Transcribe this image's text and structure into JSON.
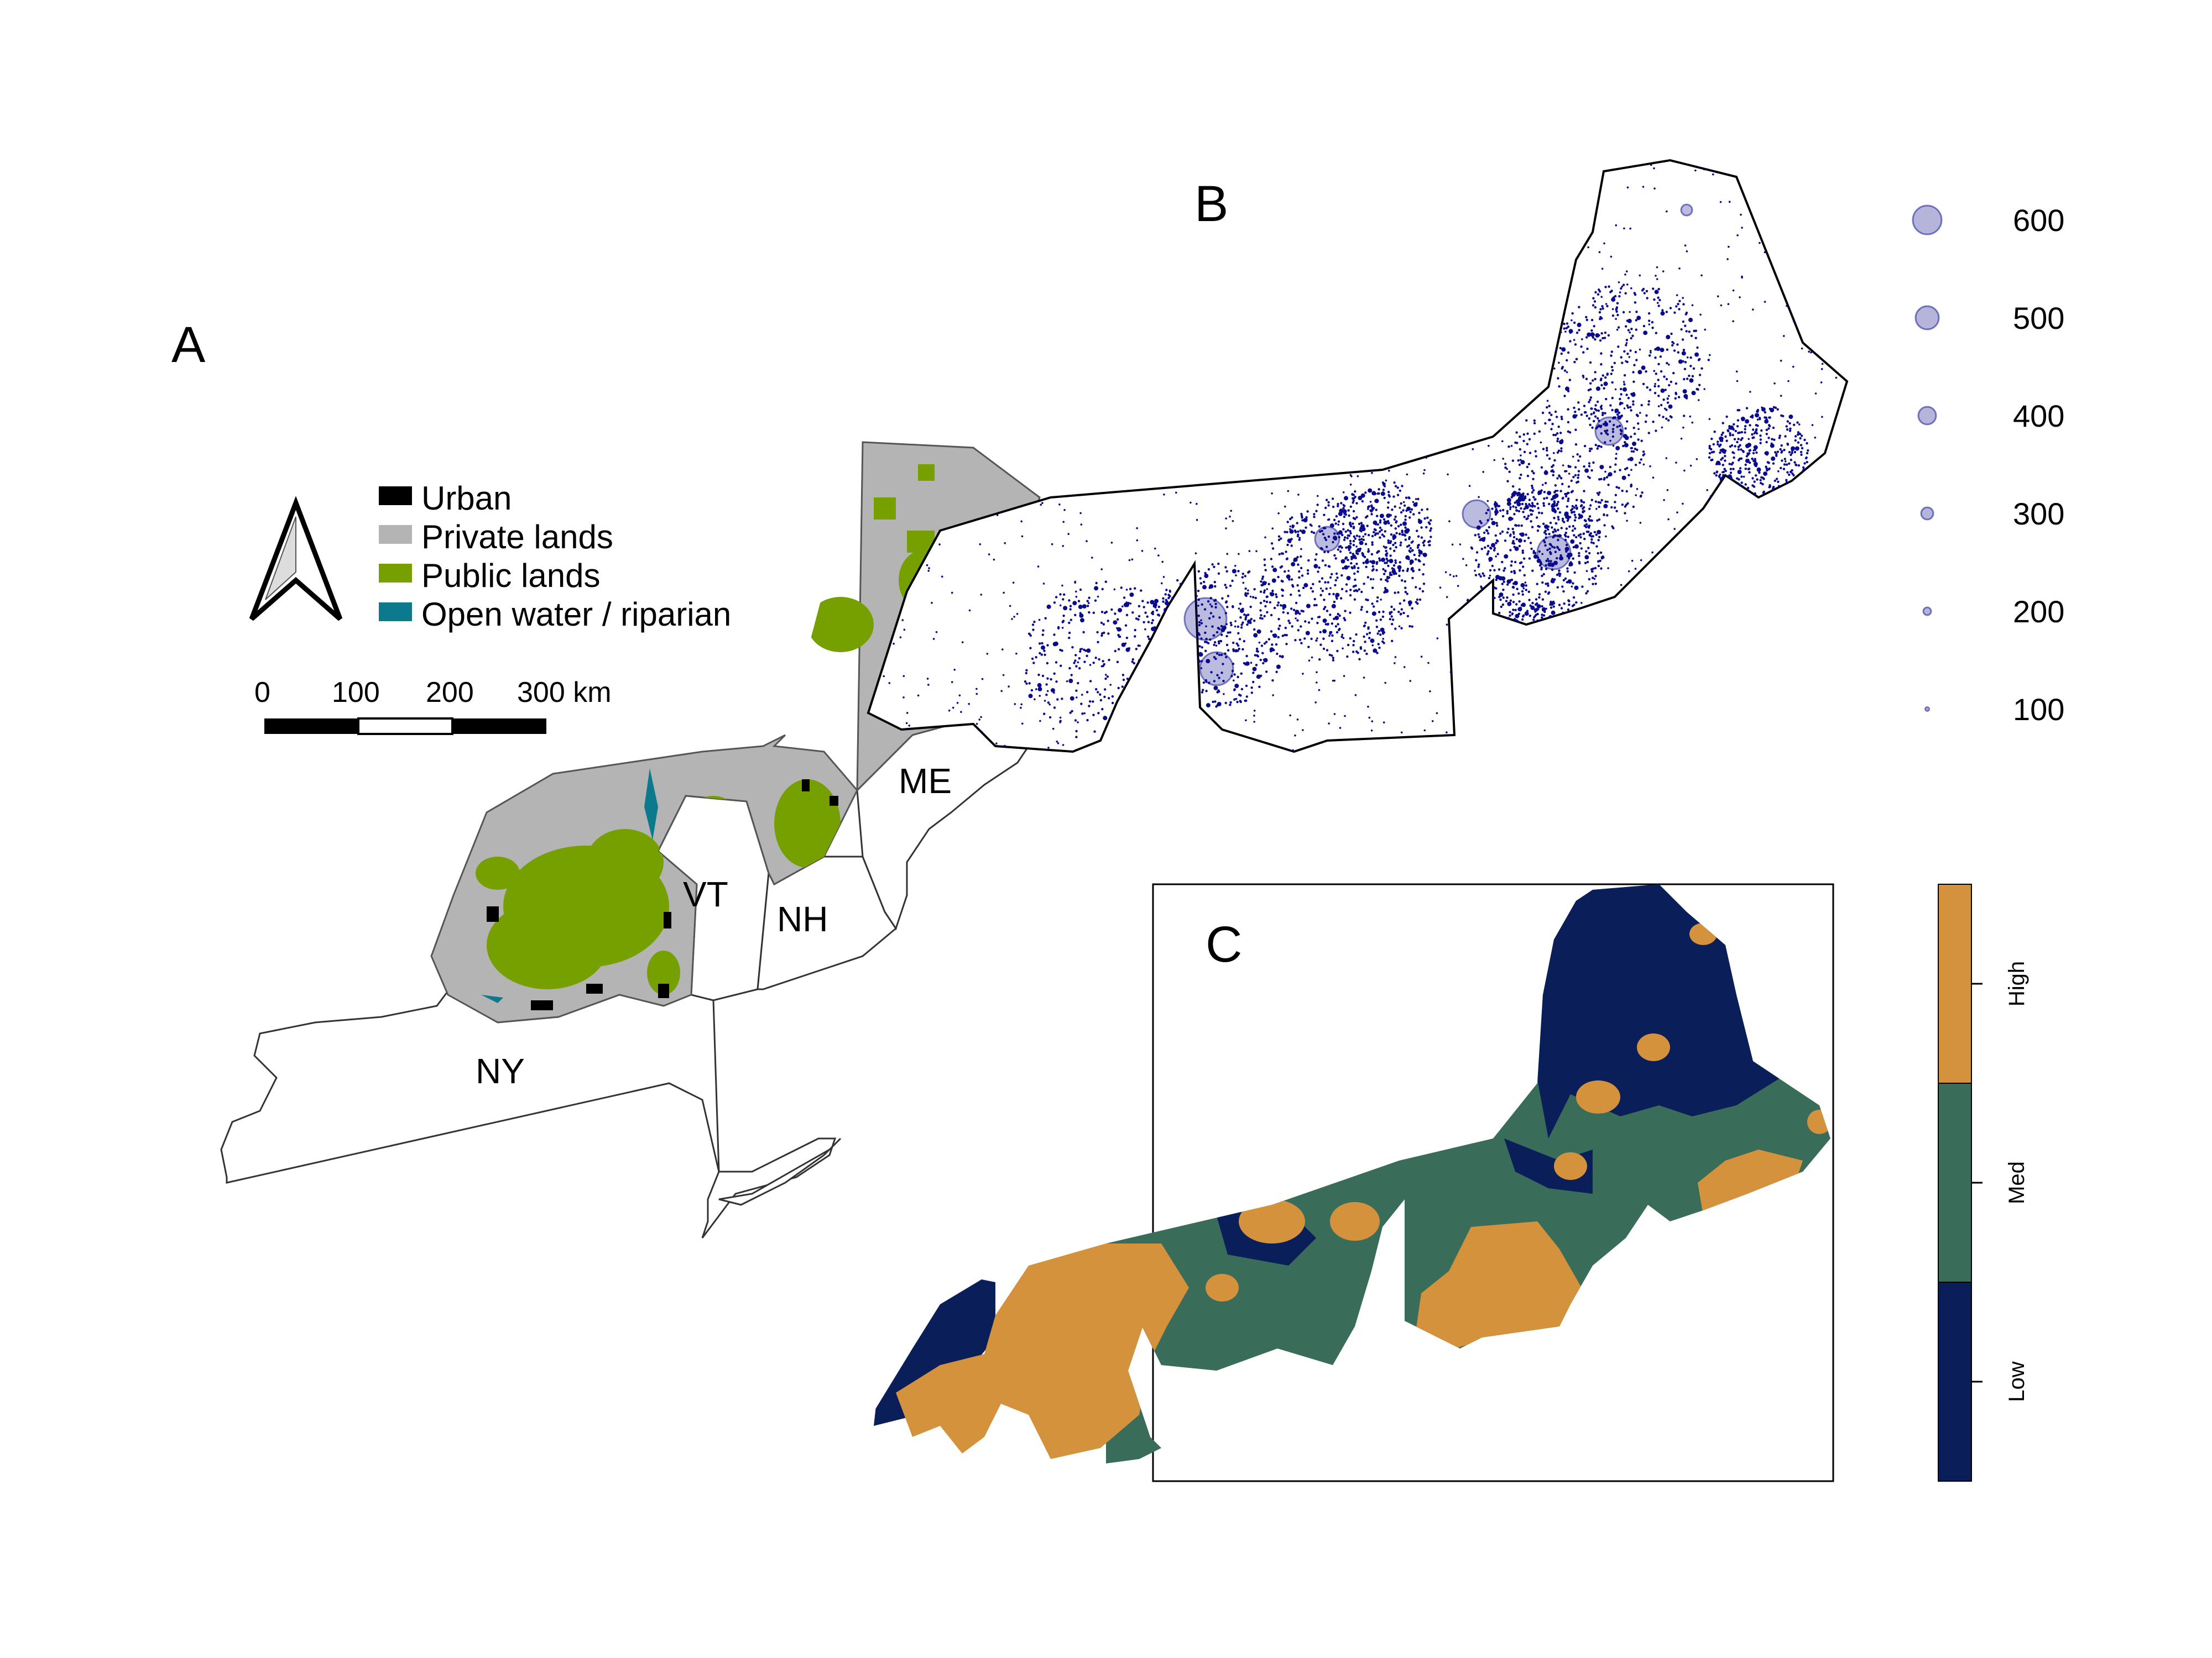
{
  "panels": {
    "a": {
      "letter": "A",
      "legend": [
        {
          "label": "Urban",
          "color": "#000000"
        },
        {
          "label": "Private lands",
          "color": "#b4b4b4"
        },
        {
          "label": "Public lands",
          "color": "#76a000"
        },
        {
          "label": "Open water / riparian",
          "color": "#0c7a8c"
        }
      ],
      "scale_bar": {
        "ticks": [
          "0",
          "100",
          "200",
          "300 km"
        ]
      },
      "states": [
        "ME",
        "VT",
        "NH",
        "NY"
      ],
      "north_arrow": "north-arrow-icon"
    },
    "b": {
      "letter": "B",
      "point_color": "#0a0a8c",
      "size_legend": [
        600,
        500,
        400,
        300,
        200,
        100
      ]
    },
    "c": {
      "letter": "C",
      "colors": {
        "low": "#0a1e5a",
        "med": "#3a6c5a",
        "high": "#d4923c"
      },
      "colorbar_labels": [
        "High",
        "Med",
        "Low"
      ]
    }
  }
}
